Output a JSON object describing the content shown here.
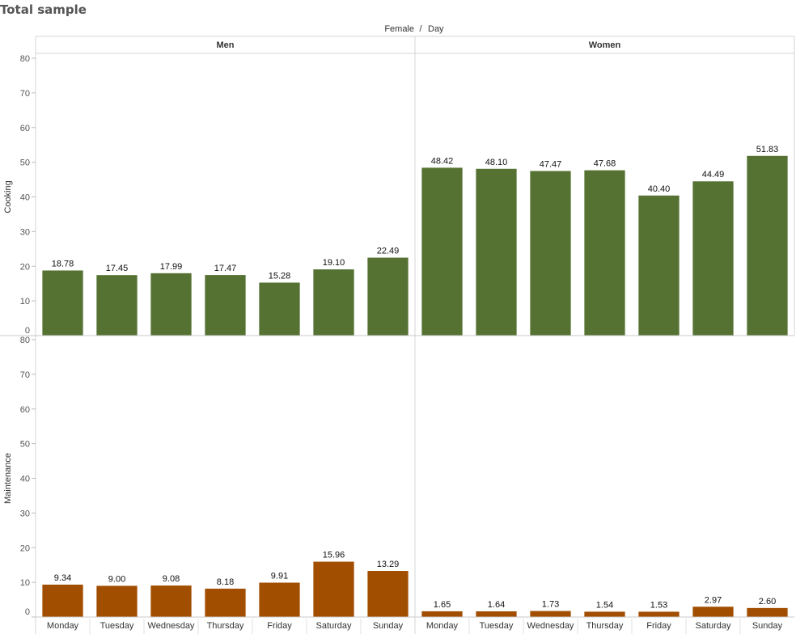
{
  "title": "Total sample",
  "chart_data": {
    "type": "bar",
    "column_header": "Female / Day",
    "column_header_parts": [
      "Female",
      "/",
      "Day"
    ],
    "panels": [
      "Men",
      "Women"
    ],
    "categories": [
      "Monday",
      "Tuesday",
      "Wednesday",
      "Thursday",
      "Friday",
      "Saturday",
      "Sunday"
    ],
    "rows": [
      {
        "label": "Cooking",
        "color": "#557232",
        "ylim": [
          0,
          80
        ],
        "yticks": [
          0,
          10,
          20,
          30,
          40,
          50,
          60,
          70,
          80
        ],
        "values": {
          "Men": [
            18.78,
            17.45,
            17.99,
            17.47,
            15.28,
            19.1,
            22.49
          ],
          "Women": [
            48.42,
            48.1,
            47.47,
            47.68,
            40.4,
            44.49,
            51.83
          ]
        },
        "labels": {
          "Men": [
            "18.78",
            "17.45",
            "17.99",
            "17.47",
            "15.28",
            "19.10",
            "22.49"
          ],
          "Women": [
            "48.42",
            "48.10",
            "47.47",
            "47.68",
            "40.40",
            "44.49",
            "51.83"
          ]
        }
      },
      {
        "label": "Maintenance",
        "color": "#A24E00",
        "ylim": [
          0,
          80
        ],
        "yticks": [
          0,
          10,
          20,
          30,
          40,
          50,
          60,
          70,
          80
        ],
        "values": {
          "Men": [
            9.34,
            9.0,
            9.08,
            8.18,
            9.91,
            15.96,
            13.29
          ],
          "Women": [
            1.65,
            1.64,
            1.73,
            1.54,
            1.53,
            2.97,
            2.6
          ]
        },
        "labels": {
          "Men": [
            "9.34",
            "9.00",
            "9.08",
            "8.18",
            "9.91",
            "15.96",
            "13.29"
          ],
          "Women": [
            "1.65",
            "1.64",
            "1.73",
            "1.54",
            "1.53",
            "2.97",
            "2.60"
          ]
        }
      }
    ],
    "grid": false,
    "legend": "none"
  }
}
